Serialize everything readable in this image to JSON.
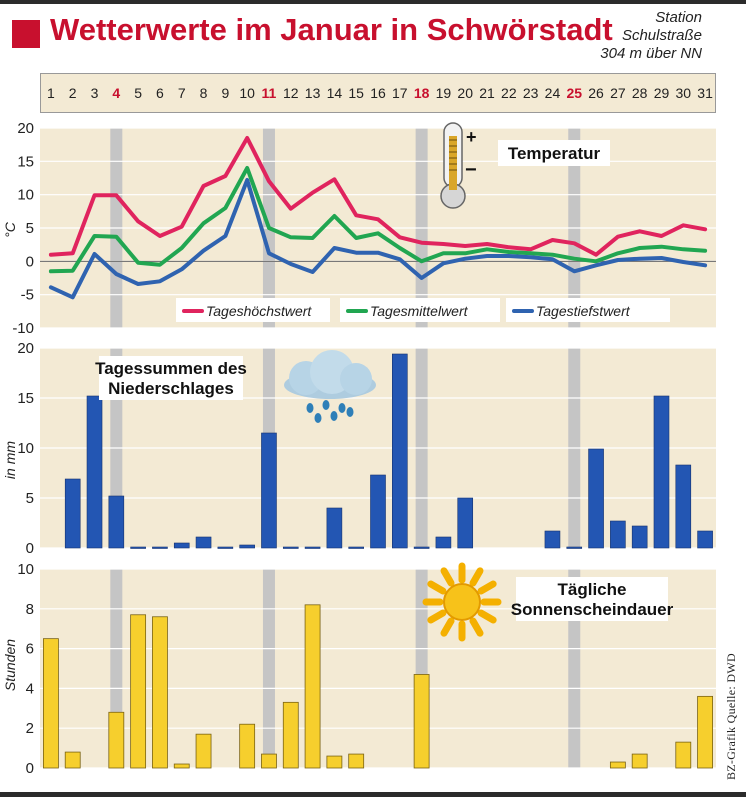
{
  "header": {
    "title": "Wetterwerte im Januar in Schwörstadt",
    "station": [
      "Station",
      "Schulstraße",
      "304 m über NN"
    ]
  },
  "days": {
    "labels": [
      "1",
      "2",
      "3",
      "4",
      "5",
      "6",
      "7",
      "8",
      "9",
      "10",
      "11",
      "12",
      "13",
      "14",
      "15",
      "16",
      "17",
      "18",
      "19",
      "20",
      "21",
      "22",
      "23",
      "24",
      "25",
      "26",
      "27",
      "28",
      "29",
      "30",
      "31"
    ],
    "weekend_days": [
      4,
      11,
      18,
      25
    ],
    "highlight_color": "#c8102e"
  },
  "colors": {
    "panel_bg": "#f3ead4",
    "weekend_band": "#c5c5c5",
    "max": "#e0245e",
    "mean": "#21a651",
    "min": "#2f63b0",
    "precip": "#2356b3",
    "sun": "#f6cf2d",
    "sun_stroke": "#7a6314"
  },
  "credit": "BZ-Grafik Quelle: DWD",
  "chart_data": [
    {
      "type": "line",
      "title": "Temperatur",
      "ylabel": "°C",
      "ylim": [
        -10,
        20
      ],
      "yticks": [
        "20",
        "15",
        "10",
        "5",
        "0",
        "-5",
        "-10"
      ],
      "x": [
        1,
        2,
        3,
        4,
        5,
        6,
        7,
        8,
        9,
        10,
        11,
        12,
        13,
        14,
        15,
        16,
        17,
        18,
        19,
        20,
        21,
        22,
        23,
        24,
        25,
        26,
        27,
        28,
        29,
        30,
        31
      ],
      "legend": [
        "Tageshöchstwert",
        "Tagesmittelwert",
        "Tagestiefstwert"
      ],
      "series": [
        {
          "name": "Tageshöchstwert",
          "values": [
            1.0,
            1.2,
            9.9,
            9.9,
            6.0,
            3.8,
            5.2,
            11.3,
            12.8,
            18.5,
            12.0,
            7.9,
            10.3,
            12.3,
            6.9,
            6.3,
            3.6,
            2.8,
            2.6,
            2.3,
            2.6,
            2.1,
            1.8,
            3.2,
            2.7,
            1.0,
            3.7,
            4.5,
            3.8,
            5.4,
            4.8
          ]
        },
        {
          "name": "Tagesmittelwert",
          "values": [
            -1.5,
            -1.4,
            3.8,
            3.7,
            -0.2,
            -0.5,
            2.0,
            5.7,
            8.0,
            14.0,
            5.0,
            3.6,
            3.5,
            6.8,
            3.5,
            4.2,
            2.0,
            0.0,
            1.2,
            1.2,
            1.8,
            1.4,
            1.2,
            1.0,
            0.4,
            0.0,
            1.2,
            2.0,
            2.2,
            1.8,
            1.6
          ]
        },
        {
          "name": "Tagestiefstwert",
          "values": [
            -3.9,
            -5.4,
            1.1,
            -1.9,
            -3.4,
            -3.0,
            -1.2,
            1.6,
            3.8,
            12.2,
            1.2,
            -0.4,
            -1.6,
            2.0,
            1.3,
            1.3,
            0.3,
            -2.5,
            -0.3,
            0.4,
            0.8,
            0.8,
            0.6,
            0.3,
            -1.5,
            -0.6,
            0.2,
            0.4,
            0.5,
            -0.1,
            -0.6
          ]
        }
      ]
    },
    {
      "type": "bar",
      "title": "Tagessummen des Niederschlages",
      "ylabel": "in mm",
      "ylim": [
        0,
        20
      ],
      "yticks": [
        "20",
        "15",
        "10",
        "5",
        "0"
      ],
      "x": [
        1,
        2,
        3,
        4,
        5,
        6,
        7,
        8,
        9,
        10,
        11,
        12,
        13,
        14,
        15,
        16,
        17,
        18,
        19,
        20,
        21,
        22,
        23,
        24,
        25,
        26,
        27,
        28,
        29,
        30,
        31
      ],
      "values": [
        0,
        6.9,
        15.2,
        5.2,
        0.1,
        0.1,
        0.5,
        1.1,
        0.1,
        0.3,
        11.5,
        0.1,
        0.1,
        4.0,
        0.1,
        7.3,
        19.4,
        0.1,
        1.1,
        5.0,
        0,
        0,
        0,
        1.7,
        0.1,
        9.9,
        2.7,
        2.2,
        15.2,
        8.3,
        1.7
      ]
    },
    {
      "type": "bar",
      "title": "Tägliche Sonnenscheindauer",
      "ylabel": "Stunden",
      "ylim": [
        0,
        10
      ],
      "yticks": [
        "10",
        "8",
        "6",
        "4",
        "2",
        "0"
      ],
      "x": [
        1,
        2,
        3,
        4,
        5,
        6,
        7,
        8,
        9,
        10,
        11,
        12,
        13,
        14,
        15,
        16,
        17,
        18,
        19,
        20,
        21,
        22,
        23,
        24,
        25,
        26,
        27,
        28,
        29,
        30,
        31
      ],
      "values": [
        6.5,
        0.8,
        0,
        2.8,
        7.7,
        7.6,
        0.2,
        1.7,
        0,
        2.2,
        0.7,
        3.3,
        8.2,
        0.6,
        0.7,
        0,
        0,
        4.7,
        0,
        0,
        0,
        0,
        0,
        0,
        0,
        0,
        0.3,
        0.7,
        0,
        1.3,
        3.6
      ]
    }
  ]
}
